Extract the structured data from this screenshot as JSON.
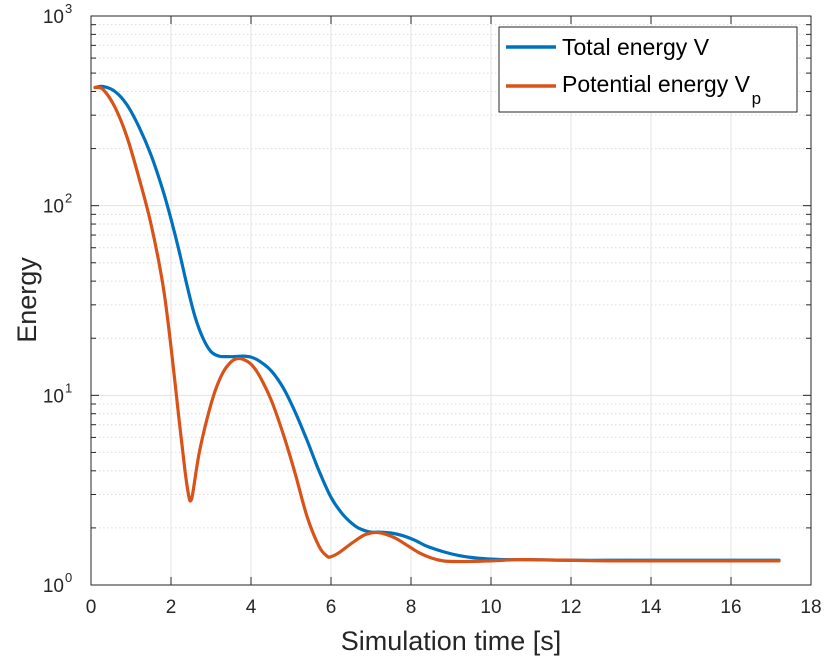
{
  "chart_data": {
    "type": "line",
    "title": "",
    "xlabel": "Simulation time [s]",
    "ylabel": "Energy",
    "yscale": "log",
    "xlim": [
      0,
      18
    ],
    "ylim": [
      1,
      1000
    ],
    "xticks": [
      0,
      2,
      4,
      6,
      8,
      10,
      12,
      14,
      16,
      18
    ],
    "xtick_labels": [
      "0",
      "2",
      "4",
      "6",
      "8",
      "10",
      "12",
      "14",
      "16",
      "18"
    ],
    "yticks": [
      1,
      10,
      100,
      1000
    ],
    "ytick_labels": [
      {
        "base": "10",
        "exp": "0"
      },
      {
        "base": "10",
        "exp": "1"
      },
      {
        "base": "10",
        "exp": "2"
      },
      {
        "base": "10",
        "exp": "3"
      }
    ],
    "grid": true,
    "minor_grid": true,
    "legend_position": "top-right",
    "series": [
      {
        "name": "Total energy V",
        "legend_main": "Total energy V",
        "legend_sub": "",
        "color": "#0072BD",
        "x": [
          0.1,
          0.3,
          0.6,
          0.9,
          1.2,
          1.5,
          1.8,
          2.0,
          2.2,
          2.4,
          2.6,
          2.8,
          3.0,
          3.2,
          3.4,
          3.6,
          3.8,
          4.0,
          4.2,
          4.5,
          4.8,
          5.1,
          5.4,
          5.7,
          6.0,
          6.3,
          6.6,
          6.8,
          7.0,
          7.2,
          7.5,
          7.8,
          8.1,
          8.4,
          8.8,
          9.2,
          9.6,
          10.0,
          10.5,
          11.0,
          12.0,
          13.0,
          14.0,
          15.0,
          16.0,
          17.2
        ],
        "y": [
          420,
          425,
          400,
          340,
          260,
          185,
          120,
          85,
          58,
          38,
          26,
          20,
          17,
          16.1,
          16,
          16,
          16.1,
          15.9,
          15.2,
          13.5,
          11,
          8.2,
          5.8,
          4,
          2.9,
          2.35,
          2.05,
          1.95,
          1.9,
          1.9,
          1.88,
          1.82,
          1.72,
          1.6,
          1.5,
          1.43,
          1.39,
          1.37,
          1.36,
          1.36,
          1.35,
          1.35,
          1.35,
          1.35,
          1.35,
          1.35
        ]
      },
      {
        "name": "Potential energy Vp",
        "legend_main": "Potential energy V",
        "legend_sub": "p",
        "color": "#D95319",
        "x": [
          0.1,
          0.3,
          0.6,
          0.9,
          1.2,
          1.5,
          1.8,
          2.0,
          2.2,
          2.35,
          2.45,
          2.5,
          2.55,
          2.7,
          2.9,
          3.1,
          3.3,
          3.5,
          3.65,
          3.8,
          4.0,
          4.2,
          4.5,
          4.8,
          5.1,
          5.4,
          5.7,
          5.9,
          6.0,
          6.2,
          6.5,
          6.8,
          7.0,
          7.15,
          7.3,
          7.6,
          7.9,
          8.2,
          8.5,
          8.8,
          9.1,
          9.4,
          10.0,
          10.6,
          11.0,
          12.0,
          13.0,
          14.0,
          15.0,
          16.0,
          17.2
        ],
        "y": [
          420,
          410,
          330,
          230,
          140,
          80,
          38,
          18,
          7.5,
          4,
          2.9,
          2.8,
          3.1,
          4.9,
          7.5,
          10.5,
          13.2,
          15,
          15.6,
          15.5,
          14.6,
          12.8,
          9.5,
          6.3,
          3.9,
          2.3,
          1.6,
          1.42,
          1.41,
          1.48,
          1.65,
          1.82,
          1.88,
          1.89,
          1.87,
          1.77,
          1.62,
          1.48,
          1.39,
          1.34,
          1.33,
          1.33,
          1.34,
          1.36,
          1.36,
          1.35,
          1.34,
          1.34,
          1.34,
          1.34,
          1.34
        ]
      }
    ]
  }
}
